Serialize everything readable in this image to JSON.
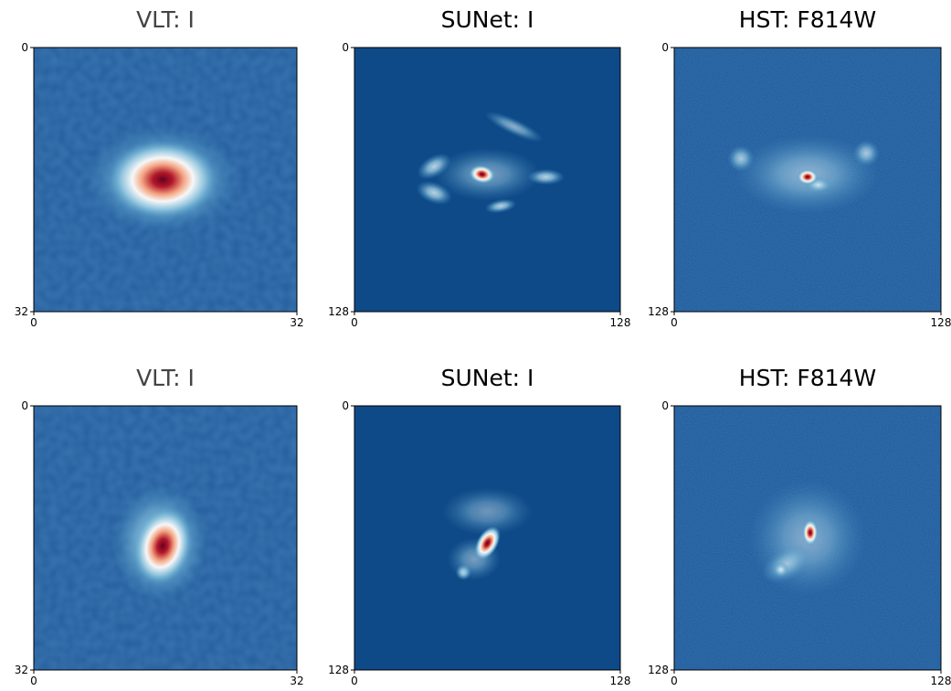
{
  "chart_data": [
    {
      "type": "image",
      "title": "VLT: I",
      "title_color": "#444444",
      "xlim": [
        0,
        32
      ],
      "ylim": [
        32,
        0
      ],
      "xticks": [
        0,
        32
      ],
      "yticks": [
        0,
        32
      ]
    },
    {
      "type": "image",
      "title": "SUNet: I",
      "title_color": "#000000",
      "xlim": [
        0,
        128
      ],
      "ylim": [
        128,
        0
      ],
      "xticks": [
        0,
        128
      ],
      "yticks": [
        0,
        128
      ]
    },
    {
      "type": "image",
      "title": "HST: F814W",
      "title_color": "#000000",
      "xlim": [
        0,
        128
      ],
      "ylim": [
        128,
        0
      ],
      "xticks": [
        0,
        128
      ],
      "yticks": [
        0,
        128
      ]
    },
    {
      "type": "image",
      "title": "VLT: I",
      "title_color": "#444444",
      "xlim": [
        0,
        32
      ],
      "ylim": [
        32,
        0
      ],
      "xticks": [
        0,
        32
      ],
      "yticks": [
        0,
        32
      ]
    },
    {
      "type": "image",
      "title": "SUNet: I",
      "title_color": "#000000",
      "xlim": [
        0,
        128
      ],
      "ylim": [
        128,
        0
      ],
      "xticks": [
        0,
        128
      ],
      "yticks": [
        0,
        128
      ]
    },
    {
      "type": "image",
      "title": "HST: F814W",
      "title_color": "#000000",
      "xlim": [
        0,
        128
      ],
      "ylim": [
        128,
        0
      ],
      "xticks": [
        0,
        128
      ],
      "yticks": [
        0,
        128
      ]
    }
  ]
}
